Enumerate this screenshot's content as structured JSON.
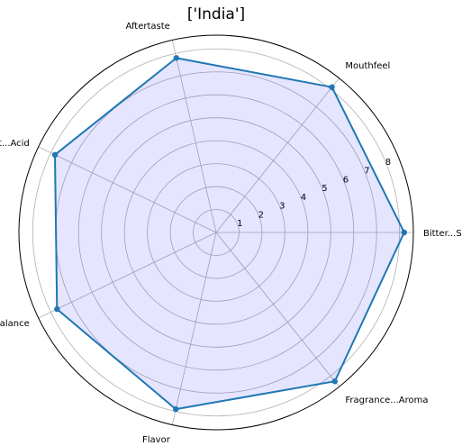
{
  "chart_data": {
    "type": "radar",
    "title": "['India']",
    "axes": [
      "Bitter...Sweet",
      "Mouthfeel",
      "Aftertaste",
      "Salt...Acid",
      "Balance",
      "Flavor",
      "Fragrance...Aroma"
    ],
    "series": [
      {
        "values": [
          8.2,
          8.1,
          7.8,
          7.8,
          7.7,
          7.9,
          8.3
        ]
      }
    ],
    "rlim": [
      0,
      8.6
    ],
    "rticks": [
      "1",
      "2",
      "3",
      "4",
      "5",
      "6",
      "7",
      "8"
    ],
    "grid": true,
    "colors": {
      "line": "#1f77b4",
      "fill": "#0000ff",
      "fill_opacity": 0.1,
      "grid": "#b0b0b0"
    }
  }
}
